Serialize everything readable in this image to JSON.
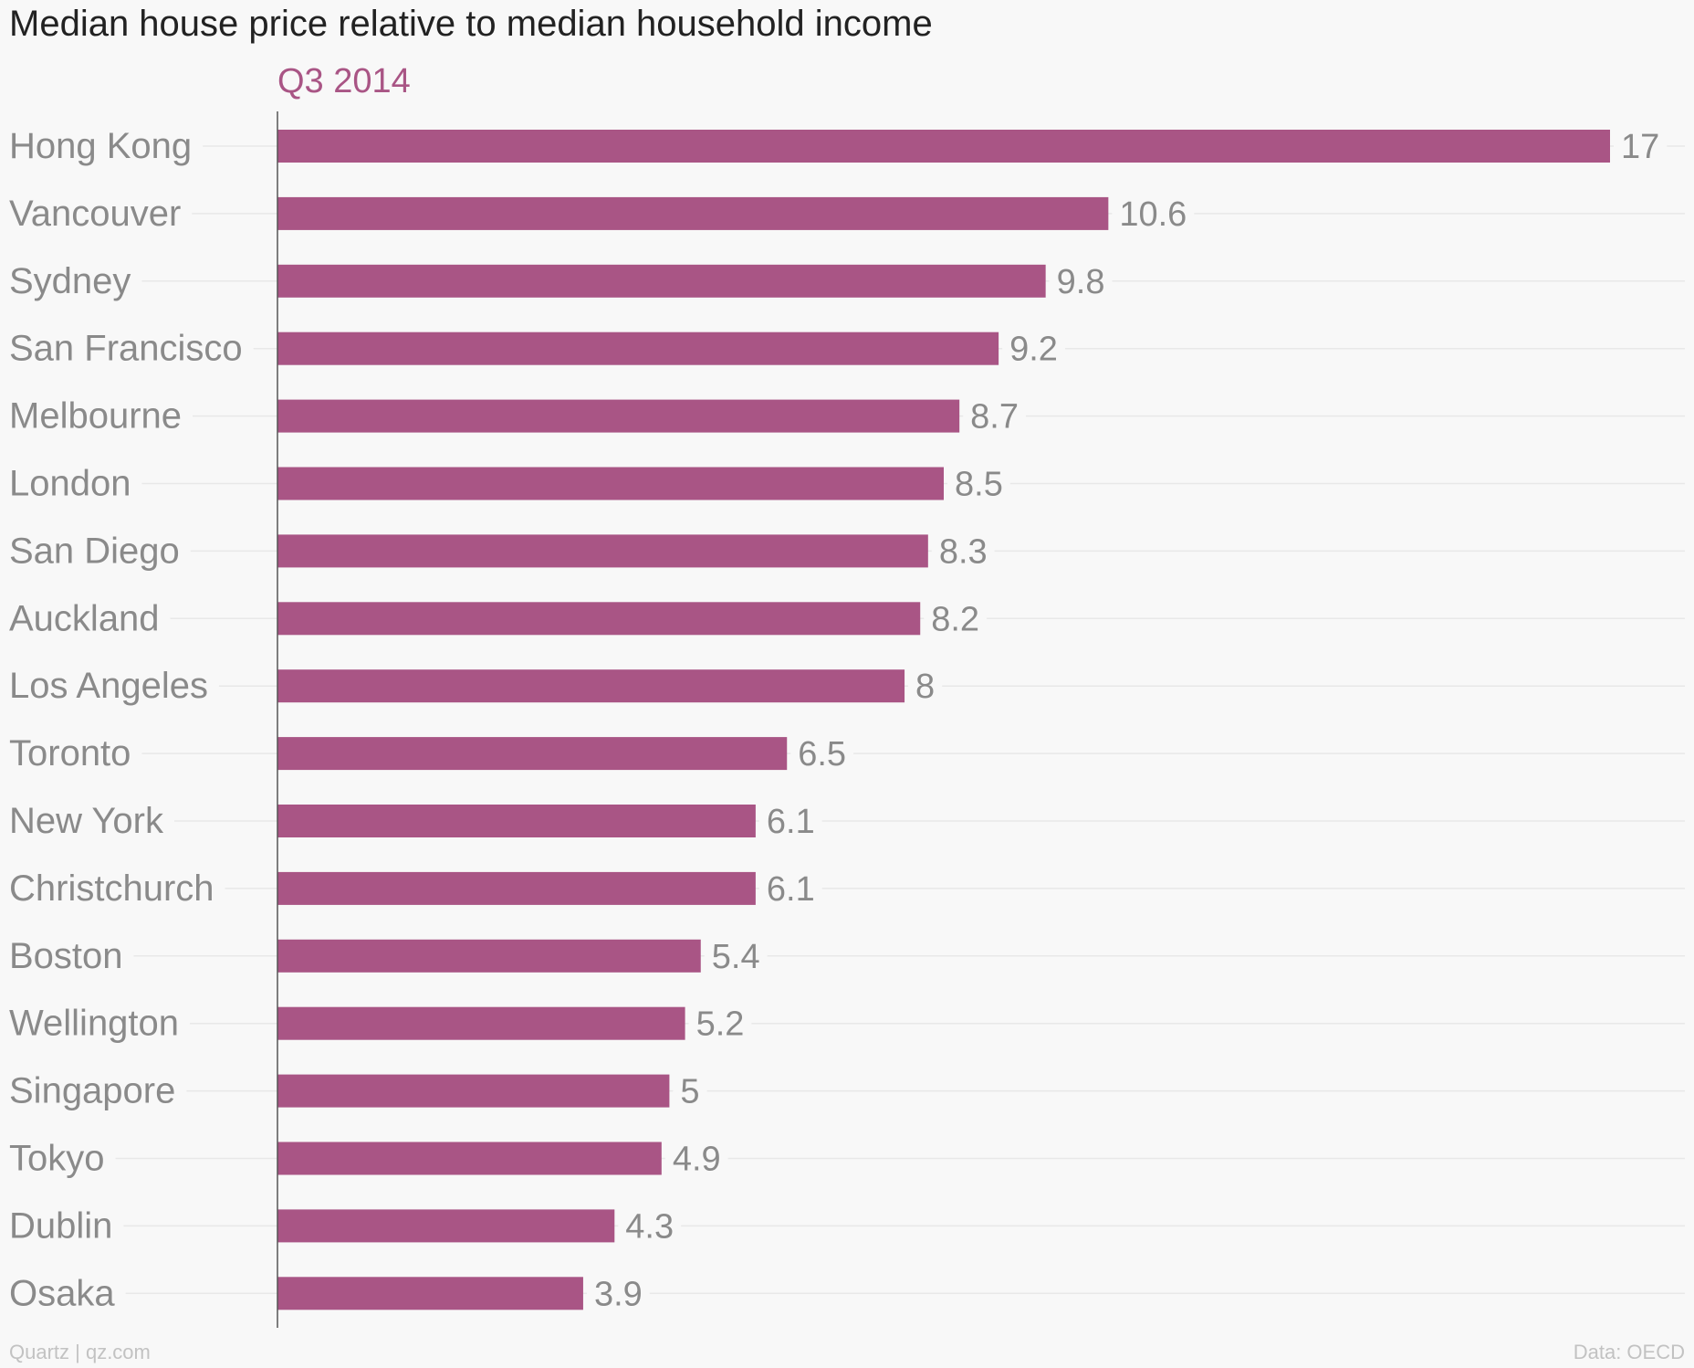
{
  "chart_data": {
    "type": "bar",
    "orientation": "horizontal",
    "title": "Median house price relative to median household income",
    "series": [
      {
        "name": "Q3 2014",
        "values": [
          17,
          10.6,
          9.8,
          9.2,
          8.7,
          8.5,
          8.3,
          8.2,
          8,
          6.5,
          6.1,
          6.1,
          5.4,
          5.2,
          5,
          4.9,
          4.3,
          3.9
        ]
      }
    ],
    "categories": [
      "Hong Kong",
      "Vancouver",
      "Sydney",
      "San Francisco",
      "Melbourne",
      "London",
      "San Diego",
      "Auckland",
      "Los Angeles",
      "Toronto",
      "New York",
      "Christchurch",
      "Boston",
      "Wellington",
      "Singapore",
      "Tokyo",
      "Dublin",
      "Osaka"
    ],
    "value_labels": [
      "17",
      "10.6",
      "9.8",
      "9.2",
      "8.7",
      "8.5",
      "8.3",
      "8.2",
      "8",
      "6.5",
      "6.1",
      "6.1",
      "5.4",
      "5.2",
      "5",
      "4.9",
      "4.3",
      "3.9"
    ],
    "xlim": [
      0,
      17
    ],
    "legend": "top",
    "grid": true,
    "colors": {
      "bar": "#a95585",
      "series_label": "#a95585",
      "category_label": "#8a8a8a",
      "value_label": "#8a8a8a",
      "gridline": "#e8e8e8",
      "axis": "#555555"
    }
  },
  "footer": {
    "source_left": "Quartz | qz.com",
    "source_right": "Data: OECD"
  }
}
